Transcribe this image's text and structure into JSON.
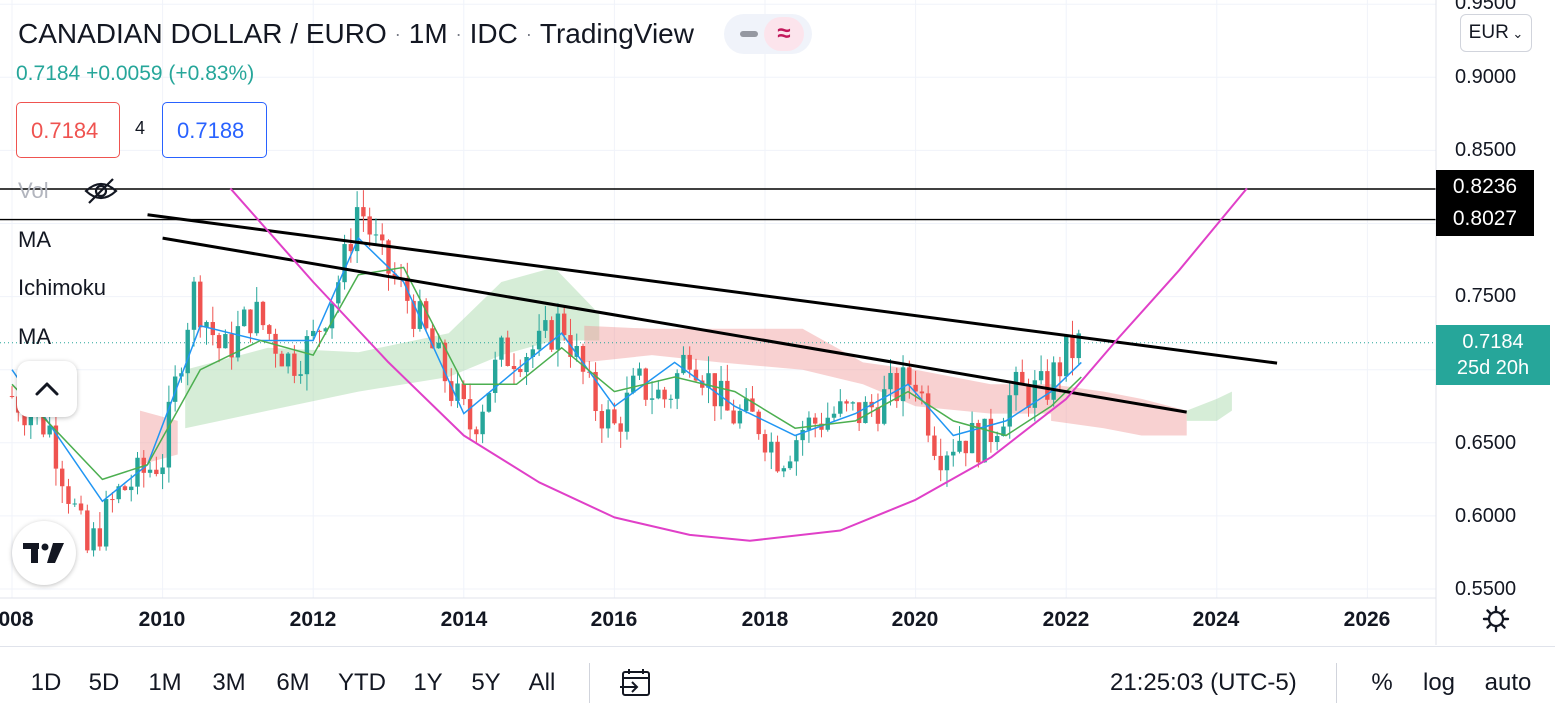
{
  "header": {
    "title": "CANADIAN DOLLAR / EURO",
    "interval": "1M",
    "source": "IDC",
    "platform": "TradingView",
    "price": "0.7184",
    "change": "+0.0059",
    "change_pct": "(+0.83%)",
    "bid": "0.7184",
    "spread": "4",
    "ask": "0.7188"
  },
  "indicators": [
    "Vol",
    "MA",
    "Ichimoku",
    "MA"
  ],
  "currency_button": "EUR",
  "colors": {
    "up": "#26a69a",
    "down": "#ef5350",
    "ma_fast": "#2196f3",
    "ma_slow": "#4caf50",
    "cloud_bull": "#a5d6a7",
    "cloud_bear": "#ef9a9a",
    "arc": "#e040c8",
    "trendline": "#000000"
  },
  "chart_data": {
    "type": "candlestick",
    "title": "CANADIAN DOLLAR / EURO · 1M · IDC",
    "xlabel": "",
    "ylabel": "",
    "x_ticks": [
      "008",
      "2010",
      "2012",
      "2014",
      "2016",
      "2018",
      "2020",
      "2022",
      "2024",
      "2026"
    ],
    "y_ticks": [
      "0.9500",
      "0.9000",
      "0.8500",
      "0.7500",
      "0.6500",
      "0.6000",
      "0.5500"
    ],
    "ylim": [
      0.545,
      0.955
    ],
    "xlim": [
      2008.0,
      2027.0
    ],
    "horizontal_lines": [
      {
        "label": "0.8236",
        "value": 0.8236
      },
      {
        "label": "0.8027",
        "value": 0.8027
      }
    ],
    "current_price": {
      "value": 0.7184,
      "label": "0.7184",
      "countdown": "25d 20h"
    },
    "trendlines": [
      {
        "from": [
          2009.8,
          0.806
        ],
        "to": [
          2024.8,
          0.7045
        ]
      },
      {
        "from": [
          2010.0,
          0.79
        ],
        "to": [
          2023.6,
          0.671
        ]
      }
    ],
    "arc": {
      "points": [
        [
          2010.9,
          0.824
        ],
        [
          2012.0,
          0.76
        ],
        [
          2013.0,
          0.705
        ],
        [
          2014.0,
          0.655
        ],
        [
          2015.0,
          0.623
        ],
        [
          2016.0,
          0.599
        ],
        [
          2017.0,
          0.587
        ],
        [
          2017.8,
          0.583
        ],
        [
          2019.0,
          0.59
        ],
        [
          2020.0,
          0.611
        ],
        [
          2021.0,
          0.64
        ],
        [
          2022.0,
          0.68
        ],
        [
          2022.7,
          0.722
        ],
        [
          2023.5,
          0.768
        ],
        [
          2024.4,
          0.824
        ]
      ]
    },
    "series": [
      {
        "name": "CADEUR monthly close",
        "x": [
          2008.0,
          2008.5,
          2009.0,
          2009.4,
          2010.0,
          2010.4,
          2010.8,
          2011.2,
          2011.7,
          2012.0,
          2012.4,
          2012.6,
          2012.9,
          2013.3,
          2013.8,
          2014.1,
          2014.5,
          2015.0,
          2015.3,
          2015.7,
          2016.0,
          2016.3,
          2016.7,
          2017.0,
          2017.5,
          2017.9,
          2018.2,
          2018.5,
          2018.9,
          2019.3,
          2019.7,
          2020.0,
          2020.3,
          2020.6,
          2020.9,
          2021.3,
          2021.7,
          2022.0,
          2022.2
        ],
        "values": [
          0.682,
          0.66,
          0.575,
          0.615,
          0.64,
          0.755,
          0.71,
          0.74,
          0.705,
          0.72,
          0.77,
          0.815,
          0.775,
          0.745,
          0.69,
          0.66,
          0.71,
          0.715,
          0.735,
          0.68,
          0.66,
          0.69,
          0.68,
          0.715,
          0.67,
          0.665,
          0.64,
          0.66,
          0.67,
          0.67,
          0.685,
          0.695,
          0.645,
          0.655,
          0.65,
          0.685,
          0.685,
          0.71,
          0.7184
        ]
      },
      {
        "name": "MA fast",
        "x": [
          2008.0,
          2009.2,
          2009.8,
          2010.5,
          2011.3,
          2012.0,
          2012.6,
          2013.2,
          2014.0,
          2014.7,
          2015.3,
          2016.0,
          2016.8,
          2017.6,
          2018.4,
          2019.2,
          2019.9,
          2020.5,
          2021.2,
          2021.8,
          2022.2
        ],
        "values": [
          0.7,
          0.61,
          0.635,
          0.73,
          0.72,
          0.72,
          0.79,
          0.76,
          0.67,
          0.7,
          0.725,
          0.675,
          0.705,
          0.675,
          0.655,
          0.67,
          0.69,
          0.655,
          0.665,
          0.685,
          0.705
        ]
      },
      {
        "name": "MA slow",
        "x": [
          2008.0,
          2009.2,
          2009.8,
          2010.5,
          2011.3,
          2012.0,
          2012.6,
          2013.2,
          2014.0,
          2014.7,
          2015.3,
          2016.0,
          2016.8,
          2017.6,
          2018.4,
          2019.2,
          2019.9,
          2020.5,
          2021.2,
          2021.8,
          2022.2
        ],
        "values": [
          0.69,
          0.625,
          0.635,
          0.7,
          0.72,
          0.71,
          0.765,
          0.77,
          0.69,
          0.69,
          0.715,
          0.685,
          0.695,
          0.685,
          0.66,
          0.665,
          0.685,
          0.665,
          0.655,
          0.675,
          0.695
        ]
      }
    ]
  },
  "bottom_bar": {
    "ranges": [
      "1D",
      "5D",
      "1M",
      "3M",
      "6M",
      "YTD",
      "1Y",
      "5Y",
      "All"
    ],
    "clock": "21:25:03 (UTC-5)",
    "options": [
      "%",
      "log",
      "auto"
    ]
  }
}
